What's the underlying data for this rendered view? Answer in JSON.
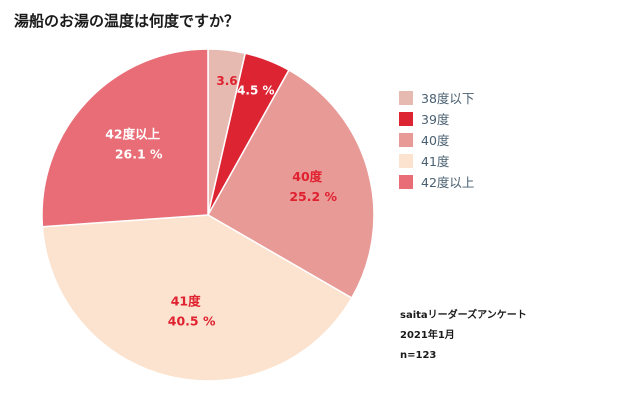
{
  "chart_data": {
    "type": "pie",
    "title": "湯船のお湯の温度は何度ですか？",
    "slices": [
      {
        "name": "38度以下",
        "value": 3.6,
        "label_lines": [
          "3.6 %"
        ],
        "label_color": "#e0212f",
        "color": "#e6b9b1"
      },
      {
        "name": "39度",
        "value": 4.5,
        "label_lines": [
          "4.5 %"
        ],
        "label_color": "#ffffff",
        "color": "#dd2433"
      },
      {
        "name": "40度",
        "value": 25.2,
        "label_lines": [
          "40度",
          "25.2 %"
        ],
        "label_color": "#e0212f",
        "color": "#e89a97"
      },
      {
        "name": "41度",
        "value": 40.5,
        "label_lines": [
          "41度",
          "40.5 %"
        ],
        "label_color": "#e0212f",
        "color": "#fbe3cf"
      },
      {
        "name": "42度以上",
        "value": 26.1,
        "label_lines": [
          "42度以上",
          "26.1 %"
        ],
        "label_color": "#ffffff",
        "color": "#e86d76"
      }
    ],
    "legend_position": "right"
  },
  "footer": {
    "source": "saitaリーダーズアンケート",
    "date": "2021年1月",
    "sample": "n=123"
  }
}
